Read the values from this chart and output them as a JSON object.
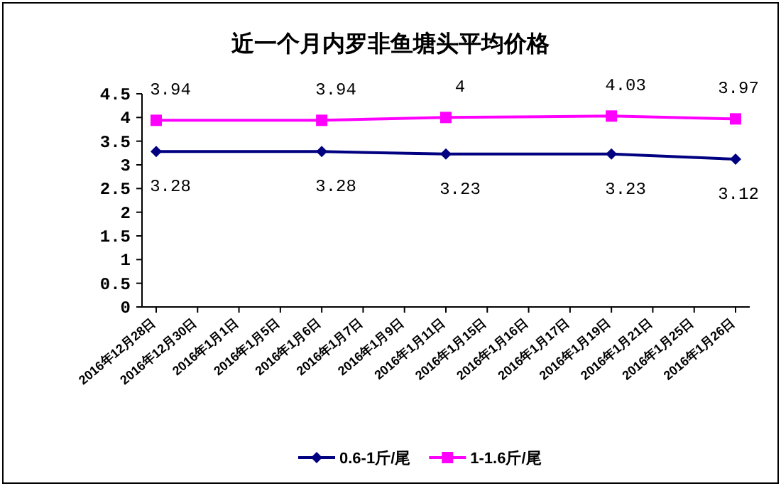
{
  "chart_data": {
    "type": "line",
    "title": "近一个月内罗非鱼塘头平均价格",
    "categories": [
      "2016年12月28日",
      "2016年12月30日",
      "2016年1月1日",
      "2016年1月5日",
      "2016年1月6日",
      "2016年1月7日",
      "2016年1月9日",
      "2016年1月11日",
      "2016年1月15日",
      "2016年1月16日",
      "2016年1月17日",
      "2016年1月19日",
      "2016年1月21日",
      "2016年1月25日",
      "2016年1月26日"
    ],
    "series": [
      {
        "name": "0.6-1斤/尾",
        "color": "#000080",
        "marker": "diamond",
        "values": [
          3.28,
          null,
          null,
          null,
          3.28,
          null,
          null,
          3.23,
          null,
          null,
          null,
          3.23,
          null,
          null,
          3.12
        ]
      },
      {
        "name": "1-1.6斤/尾",
        "color": "#ff00ff",
        "marker": "square",
        "values": [
          3.94,
          null,
          null,
          null,
          3.94,
          null,
          null,
          4,
          null,
          null,
          null,
          4.03,
          null,
          null,
          3.97
        ]
      }
    ],
    "ylim": [
      0,
      4.5
    ],
    "yticks": [
      0,
      0.5,
      1,
      1.5,
      2,
      2.5,
      3,
      3.5,
      4,
      4.5
    ],
    "data_labels": true,
    "legend": "bottom",
    "grid": false,
    "line_style": "solid"
  }
}
